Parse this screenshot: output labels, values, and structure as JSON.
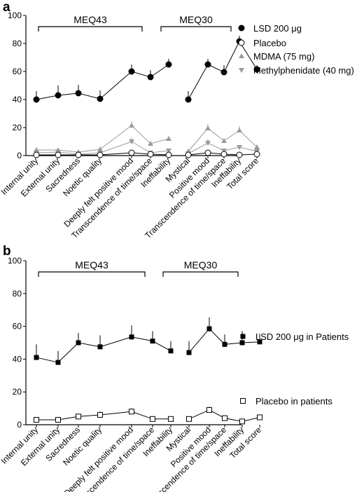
{
  "chart_data": [
    {
      "panel_label": "a",
      "type": "line",
      "ylim": [
        0,
        100
      ],
      "yticks": [
        "0",
        "20",
        "40",
        "60",
        "80",
        "100"
      ],
      "categories": [
        "Internal unity",
        "External unity",
        "Sacredness",
        "Noetic quality",
        "Deeply felt positive mood",
        "Transcendence of time/space",
        "Ineffability",
        "Mystical",
        "Positive mood",
        "Transcendence of time/space",
        "Ineffability",
        "Total score"
      ],
      "groups": [
        {
          "label": "MEQ43",
          "from": 0,
          "to": 6
        },
        {
          "label": "MEQ30",
          "from": 7,
          "to": 11
        }
      ],
      "legend_position": "right",
      "series": [
        {
          "name": "LSD 200 μg",
          "marker": "circle-filled",
          "color": "#000000",
          "values": [
            40,
            43,
            44.5,
            40.5,
            60,
            56,
            65,
            40,
            65,
            59.5,
            81.5,
            61.5
          ],
          "errors": [
            6,
            7,
            6,
            6,
            5,
            5,
            4,
            6,
            4,
            5,
            4,
            3
          ]
        },
        {
          "name": "Placebo",
          "marker": "circle-open",
          "color": "#000000",
          "values": [
            0.5,
            0.5,
            0.5,
            0.5,
            2,
            1,
            0.5,
            0.5,
            2,
            1,
            0.5,
            1
          ],
          "errors": [
            0.5,
            0.5,
            0.5,
            0.5,
            1,
            0.5,
            0.5,
            0.5,
            1,
            0.5,
            0.5,
            0.5
          ]
        },
        {
          "name": "MDMA (75 mg)",
          "marker": "triangle-up",
          "color": "#9a9a9a",
          "values": [
            4,
            4,
            2.5,
            4.5,
            21.5,
            8.5,
            12,
            3,
            19.5,
            10.5,
            18,
            6
          ],
          "errors": [
            1,
            1,
            1,
            1.5,
            3,
            2,
            2,
            1,
            3,
            2,
            3,
            1
          ]
        },
        {
          "name": "Methylphenidate (40 mg)",
          "marker": "triangle-down",
          "color": "#9a9a9a",
          "values": [
            2,
            2.5,
            1,
            2,
            10,
            2,
            3.5,
            1.5,
            9,
            3.5,
            6,
            3
          ],
          "errors": [
            1,
            1,
            0.5,
            1,
            3,
            1,
            1,
            0.5,
            3,
            1,
            1.5,
            1
          ]
        }
      ]
    },
    {
      "panel_label": "b",
      "type": "line",
      "ylim": [
        0,
        100
      ],
      "yticks": [
        "0",
        "20",
        "40",
        "60",
        "80",
        "100"
      ],
      "categories": [
        "Internal unity",
        "External unity",
        "Sacredness",
        "Noetic quality",
        "Deeply felt positive mood",
        "Transcendence of time/space",
        "Ineffability",
        "Mystical",
        "Positive mood",
        "Transcendence of time/space",
        "Ineffability",
        "Total score"
      ],
      "groups": [
        {
          "label": "MEQ43",
          "from": 0,
          "to": 6
        },
        {
          "label": "MEQ30",
          "from": 7,
          "to": 11
        }
      ],
      "legend_position": "right",
      "series": [
        {
          "name": "LSD 200 μg in Patients",
          "marker": "square-filled",
          "color": "#000000",
          "values": [
            41,
            38,
            50,
            47.5,
            53.5,
            51,
            45,
            44,
            58.5,
            49,
            50,
            50.5
          ],
          "errors": [
            8,
            7,
            6,
            7,
            7,
            6,
            6,
            7,
            7,
            6,
            7,
            5
          ]
        },
        {
          "name": "Placebo in patients",
          "marker": "square-open",
          "color": "#000000",
          "values": [
            3,
            3,
            5,
            6,
            8,
            3.5,
            3.5,
            3.5,
            9,
            4,
            2,
            4.5
          ],
          "errors": [
            1,
            1,
            1.5,
            2,
            2,
            1,
            1,
            1,
            2,
            1,
            1,
            1
          ]
        }
      ]
    }
  ]
}
